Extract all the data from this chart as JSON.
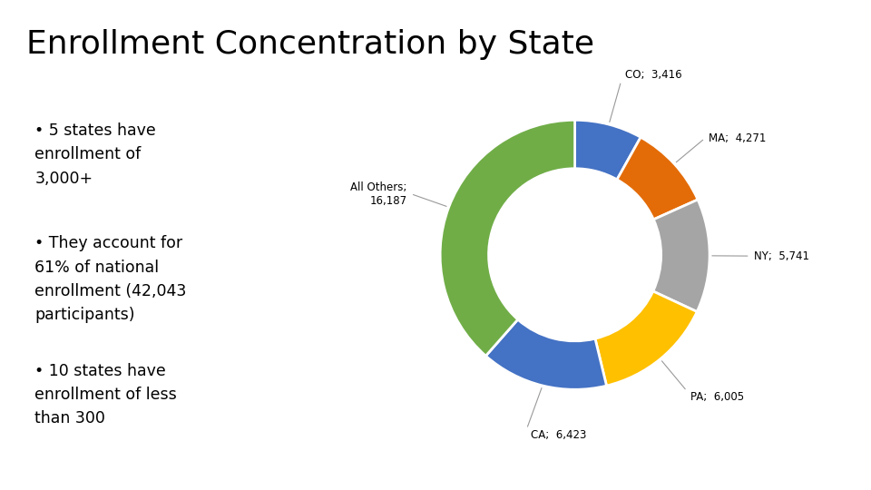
{
  "title": "Enrollment Concentration by State",
  "slices": [
    {
      "label": "CO;  3,416",
      "value": 3416,
      "color": "#4472C4"
    },
    {
      "label": "MA;  4,271",
      "value": 4271,
      "color": "#E36C09"
    },
    {
      "label": "NY;  5,741",
      "value": 5741,
      "color": "#A5A5A5"
    },
    {
      "label": "PA;  6,005",
      "value": 6005,
      "color": "#FFC000"
    },
    {
      "label": "CA;  6,423",
      "value": 6423,
      "color": "#4472C4"
    },
    {
      "label": "All Others;\n16,187",
      "value": 16187,
      "color": "#70AD47"
    }
  ],
  "bullet_points": [
    "5 states have\nenrollment of\n3,000+",
    "They account for\n61% of national\nenrollment (42,043\nparticipants)",
    "10 states have\nenrollment of less\nthan 300"
  ],
  "background_color": "#FFFFFF",
  "title_fontsize": 26,
  "label_fontsize": 8.5,
  "bullet_fontsize": 12.5
}
